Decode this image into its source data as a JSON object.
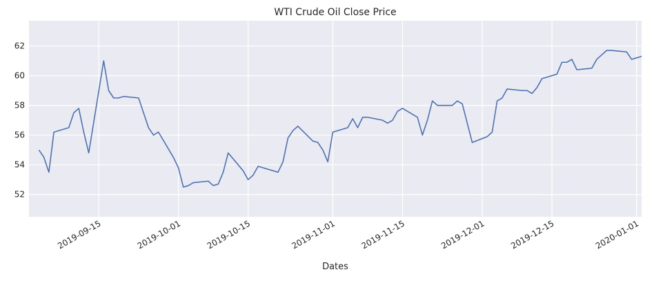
{
  "chart_data": {
    "type": "line",
    "title": "WTI Crude Oil Close Price",
    "x_label": "Dates",
    "x": [
      "2019-09-03",
      "2019-09-04",
      "2019-09-05",
      "2019-09-06",
      "2019-09-09",
      "2019-09-10",
      "2019-09-11",
      "2019-09-12",
      "2019-09-13",
      "2019-09-16",
      "2019-09-17",
      "2019-09-18",
      "2019-09-19",
      "2019-09-20",
      "2019-09-23",
      "2019-09-24",
      "2019-09-25",
      "2019-09-26",
      "2019-09-27",
      "2019-09-30",
      "2019-10-01",
      "2019-10-02",
      "2019-10-03",
      "2019-10-04",
      "2019-10-07",
      "2019-10-08",
      "2019-10-09",
      "2019-10-10",
      "2019-10-11",
      "2019-10-14",
      "2019-10-15",
      "2019-10-16",
      "2019-10-17",
      "2019-10-18",
      "2019-10-21",
      "2019-10-22",
      "2019-10-23",
      "2019-10-24",
      "2019-10-25",
      "2019-10-28",
      "2019-10-29",
      "2019-10-30",
      "2019-10-31",
      "2019-11-01",
      "2019-11-04",
      "2019-11-05",
      "2019-11-06",
      "2019-11-07",
      "2019-11-08",
      "2019-11-11",
      "2019-11-12",
      "2019-11-13",
      "2019-11-14",
      "2019-11-15",
      "2019-11-18",
      "2019-11-19",
      "2019-11-20",
      "2019-11-21",
      "2019-11-22",
      "2019-11-25",
      "2019-11-26",
      "2019-11-27",
      "2019-11-29",
      "2019-12-02",
      "2019-12-03",
      "2019-12-04",
      "2019-12-05",
      "2019-12-06",
      "2019-12-09",
      "2019-12-10",
      "2019-12-11",
      "2019-12-12",
      "2019-12-13",
      "2019-12-16",
      "2019-12-17",
      "2019-12-18",
      "2019-12-19",
      "2019-12-20",
      "2019-12-23",
      "2019-12-24",
      "2019-12-26",
      "2019-12-27",
      "2019-12-30",
      "2019-12-31",
      "2020-01-02"
    ],
    "series": [
      {
        "name": "Close",
        "color": "#4c72b0",
        "values": [
          55.0,
          54.5,
          53.5,
          56.2,
          56.5,
          57.5,
          57.8,
          56.2,
          54.8,
          61.0,
          59.0,
          58.5,
          58.5,
          58.6,
          58.5,
          57.5,
          56.5,
          56.0,
          56.2,
          54.5,
          53.8,
          52.5,
          52.6,
          52.8,
          52.9,
          52.6,
          52.7,
          53.5,
          54.8,
          53.6,
          53.0,
          53.3,
          53.9,
          53.8,
          53.5,
          54.2,
          55.8,
          56.3,
          56.6,
          55.6,
          55.5,
          55.0,
          54.2,
          56.2,
          56.5,
          57.1,
          56.5,
          57.2,
          57.2,
          57.0,
          56.8,
          57.0,
          57.6,
          57.8,
          57.2,
          56.0,
          57.0,
          58.3,
          58.0,
          58.0,
          58.3,
          58.1,
          55.5,
          55.9,
          56.2,
          58.3,
          58.5,
          59.1,
          59.0,
          59.0,
          58.8,
          59.2,
          59.8,
          60.1,
          60.9,
          60.9,
          61.1,
          60.4,
          60.5,
          61.1,
          61.7,
          61.7,
          61.6,
          61.1,
          61.3
        ]
      }
    ],
    "xlim": [
      "2019-09-01",
      "2020-01-02"
    ],
    "xticks": [
      "2019-09-15",
      "2019-10-01",
      "2019-10-15",
      "2019-11-01",
      "2019-11-15",
      "2019-12-01",
      "2019-12-15",
      "2020-01-01"
    ],
    "ylim": [
      50.5,
      63.7
    ],
    "yticks": [
      52,
      54,
      56,
      58,
      60,
      62
    ],
    "grid": true
  }
}
